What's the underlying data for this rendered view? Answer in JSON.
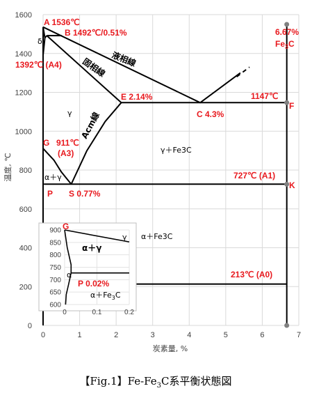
{
  "chart_data": {
    "type": "line",
    "caption": "【Fig.1】Fe-Fe3C系平衡状態図",
    "xlabel": "炭素量, %",
    "ylabel": "温度, ℃",
    "xlim": [
      0,
      7
    ],
    "ylim": [
      0,
      1600
    ],
    "xticks": [
      "0",
      "1",
      "2",
      "3",
      "4",
      "5",
      "6",
      "7"
    ],
    "yticks": [
      "0",
      "200",
      "400",
      "600",
      "800",
      "1000",
      "1200",
      "1400",
      "1600"
    ],
    "grid": true,
    "lines": [
      {
        "name": "液相線",
        "points": [
          [
            0,
            1536
          ],
          [
            4.3,
            1147
          ],
          [
            5.4,
            1300
          ]
        ]
      },
      {
        "name": "固相線",
        "points": [
          [
            0.1,
            1492
          ],
          [
            2.14,
            1147
          ]
        ]
      },
      {
        "name": "Acm線",
        "points": [
          [
            0.77,
            727
          ],
          [
            1.2,
            900
          ],
          [
            1.7,
            1050
          ],
          [
            2.14,
            1147
          ]
        ]
      },
      {
        "name": "",
        "points": [
          [
            0,
            911
          ],
          [
            0.3,
            850
          ],
          [
            0.5,
            790
          ],
          [
            0.77,
            727
          ]
        ]
      },
      {
        "name": "",
        "points": [
          [
            0,
            1392
          ],
          [
            0.05,
            1480
          ],
          [
            0.1,
            1492
          ]
        ]
      },
      {
        "name": "",
        "points": [
          [
            0,
            1536
          ],
          [
            0.05,
            1480
          ]
        ]
      },
      {
        "name": "",
        "points": [
          [
            0.1,
            1492
          ],
          [
            0.51,
            1492
          ]
        ]
      },
      {
        "name": "",
        "points": [
          [
            2.14,
            1147
          ],
          [
            6.67,
            1147
          ]
        ]
      },
      {
        "name": "",
        "points": [
          [
            0.02,
            727
          ],
          [
            6.67,
            727
          ]
        ]
      },
      {
        "name": "",
        "points": [
          [
            0,
            0
          ],
          [
            0,
            1536
          ]
        ]
      },
      {
        "name": "",
        "points": [
          [
            6.67,
            0
          ],
          [
            6.67,
            1550
          ]
        ]
      }
    ],
    "dashed": [
      {
        "points": [
          [
            5.3,
            1280
          ],
          [
            5.65,
            1330
          ]
        ]
      }
    ],
    "hlines": [
      {
        "y": 213,
        "x": [
          1.6,
          6.67
        ],
        "label": "213℃ (A0)"
      }
    ],
    "points": [
      {
        "x": 6.67,
        "y": 1550
      },
      {
        "x": 6.67,
        "y": 1147
      },
      {
        "x": 6.67,
        "y": 727
      },
      {
        "x": 6.67,
        "y": 0
      }
    ],
    "labels": {
      "A": "A 1536℃",
      "B": "B 1492℃/0.51%",
      "delta": "δ",
      "A4": "1392℃ (A4)",
      "fe3c_pct": "6.67%",
      "fe3c": "Fe3C",
      "liquidus": "液相線",
      "solidus": "固相線",
      "E": "E 2.14%",
      "C": "C 4.3%",
      "T1147": "1147℃",
      "F": "F",
      "gamma": "γ",
      "acm": "Acm線",
      "G": "G",
      "G911": "911℃",
      "A3": "(A3)",
      "gfe3c": "γ＋Fe3C",
      "alpha_gamma": "α＋γ",
      "T727": "727℃ (A1)",
      "K": "K",
      "P": "P",
      "S": "S 0.77%",
      "A0": "213℃ (A0)"
    },
    "inset": {
      "xlim": [
        0,
        0.2
      ],
      "ylim": [
        600,
        900
      ],
      "xticks": [
        "0",
        "0.1",
        "0.2"
      ],
      "yticks": [
        "600",
        "650",
        "700",
        "750",
        "800",
        "850",
        "900"
      ],
      "labels": {
        "G": "G",
        "gamma": "γ",
        "alpha_gamma": "α＋γ",
        "alpha": "α",
        "P": "P 0.02%",
        "afe3c": "α＋Fe3C",
        "afe3c_out": "α＋Fe3C"
      }
    }
  }
}
